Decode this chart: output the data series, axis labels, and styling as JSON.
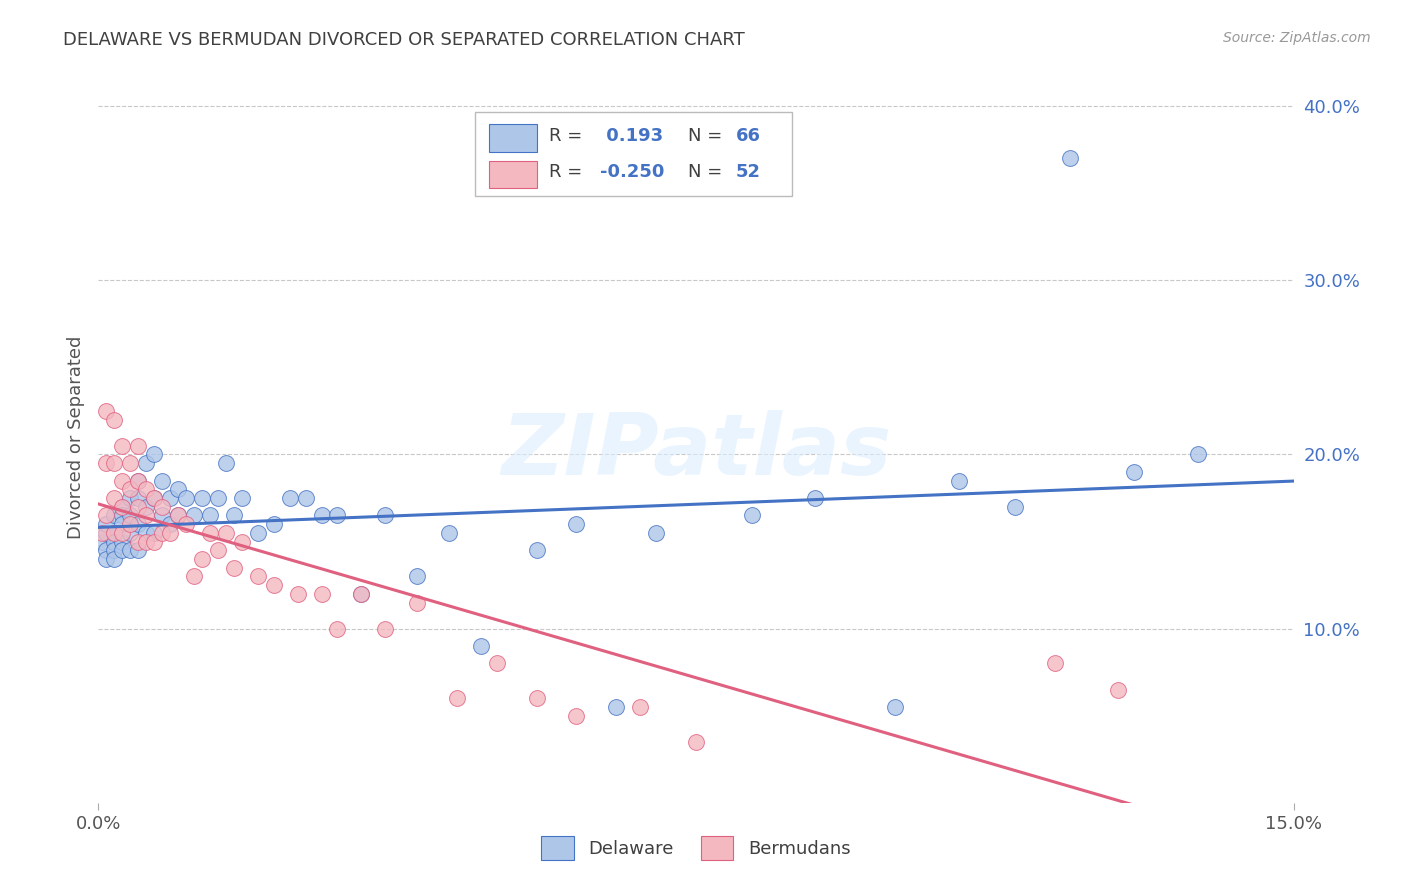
{
  "title": "DELAWARE VS BERMUDAN DIVORCED OR SEPARATED CORRELATION CHART",
  "source": "Source: ZipAtlas.com",
  "ylabel": "Divorced or Separated",
  "xlim": [
    0.0,
    0.15
  ],
  "ylim": [
    0.0,
    0.42
  ],
  "yticks": [
    0.0,
    0.1,
    0.2,
    0.3,
    0.4
  ],
  "ytick_labels": [
    "",
    "10.0%",
    "20.0%",
    "30.0%",
    "40.0%"
  ],
  "xtick_labels": [
    "0.0%",
    "15.0%"
  ],
  "delaware_color": "#aec6e8",
  "bermuda_color": "#f4b8c1",
  "delaware_line_color": "#4472c4",
  "bermuda_line_color": "#e06080",
  "background_color": "#ffffff",
  "grid_color": "#c8c8c8",
  "title_color": "#404040",
  "axis_label_color": "#4472c4",
  "watermark_text": "ZIPatlas",
  "legend_label_1": "Delaware",
  "legend_label_2": "Bermudans",
  "delaware_x": [
    0.0005,
    0.001,
    0.001,
    0.001,
    0.001,
    0.002,
    0.002,
    0.002,
    0.002,
    0.002,
    0.003,
    0.003,
    0.003,
    0.003,
    0.003,
    0.004,
    0.004,
    0.004,
    0.004,
    0.005,
    0.005,
    0.005,
    0.005,
    0.006,
    0.006,
    0.006,
    0.007,
    0.007,
    0.007,
    0.008,
    0.008,
    0.009,
    0.009,
    0.01,
    0.01,
    0.011,
    0.012,
    0.013,
    0.014,
    0.015,
    0.016,
    0.017,
    0.018,
    0.02,
    0.022,
    0.024,
    0.026,
    0.028,
    0.03,
    0.033,
    0.036,
    0.04,
    0.044,
    0.048,
    0.055,
    0.06,
    0.065,
    0.07,
    0.082,
    0.09,
    0.1,
    0.108,
    0.115,
    0.122,
    0.13,
    0.138
  ],
  "delaware_y": [
    0.15,
    0.155,
    0.145,
    0.16,
    0.14,
    0.165,
    0.155,
    0.15,
    0.145,
    0.14,
    0.17,
    0.165,
    0.16,
    0.15,
    0.145,
    0.175,
    0.165,
    0.155,
    0.145,
    0.185,
    0.175,
    0.16,
    0.145,
    0.195,
    0.17,
    0.155,
    0.2,
    0.175,
    0.155,
    0.185,
    0.165,
    0.175,
    0.16,
    0.18,
    0.165,
    0.175,
    0.165,
    0.175,
    0.165,
    0.175,
    0.195,
    0.165,
    0.175,
    0.155,
    0.16,
    0.175,
    0.175,
    0.165,
    0.165,
    0.12,
    0.165,
    0.13,
    0.155,
    0.09,
    0.145,
    0.16,
    0.055,
    0.155,
    0.165,
    0.175,
    0.055,
    0.185,
    0.17,
    0.37,
    0.19,
    0.2
  ],
  "bermuda_x": [
    0.0005,
    0.001,
    0.001,
    0.001,
    0.002,
    0.002,
    0.002,
    0.002,
    0.003,
    0.003,
    0.003,
    0.003,
    0.004,
    0.004,
    0.004,
    0.005,
    0.005,
    0.005,
    0.005,
    0.006,
    0.006,
    0.006,
    0.007,
    0.007,
    0.008,
    0.008,
    0.009,
    0.01,
    0.011,
    0.012,
    0.013,
    0.014,
    0.015,
    0.016,
    0.017,
    0.018,
    0.02,
    0.022,
    0.025,
    0.028,
    0.03,
    0.033,
    0.036,
    0.04,
    0.045,
    0.05,
    0.055,
    0.06,
    0.068,
    0.075,
    0.12,
    0.128
  ],
  "bermuda_y": [
    0.155,
    0.225,
    0.195,
    0.165,
    0.22,
    0.195,
    0.175,
    0.155,
    0.205,
    0.185,
    0.17,
    0.155,
    0.195,
    0.18,
    0.16,
    0.205,
    0.185,
    0.17,
    0.15,
    0.18,
    0.165,
    0.15,
    0.175,
    0.15,
    0.17,
    0.155,
    0.155,
    0.165,
    0.16,
    0.13,
    0.14,
    0.155,
    0.145,
    0.155,
    0.135,
    0.15,
    0.13,
    0.125,
    0.12,
    0.12,
    0.1,
    0.12,
    0.1,
    0.115,
    0.06,
    0.08,
    0.06,
    0.05,
    0.055,
    0.035,
    0.08,
    0.065
  ]
}
